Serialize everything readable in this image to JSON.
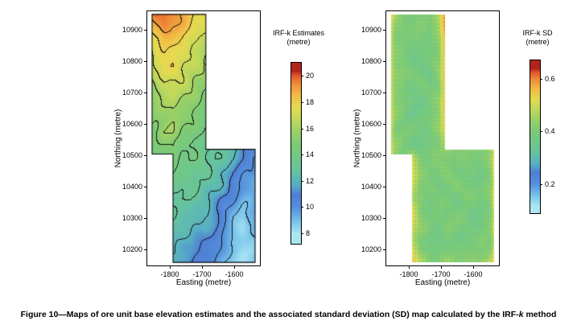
{
  "figure": {
    "caption_parts": [
      {
        "text": "Figure 10—Maps of ore unit base elevation estimates and the associated standard deviation (SD) map calculated by the IRF-"
      },
      {
        "text": "k"
      },
      {
        "text": " method"
      }
    ]
  },
  "chart_data": {
    "type": "heatmap",
    "description": "Two contour/heatmap maps of an irregular Z-shaped ore domain: kriged base elevation estimates (left) and standard deviation (right).",
    "region_polygon": [
      [
        -1855,
        10950
      ],
      [
        -1688,
        10950
      ],
      [
        -1688,
        10520
      ],
      [
        -1535,
        10520
      ],
      [
        -1535,
        10160
      ],
      [
        -1790,
        10160
      ],
      [
        -1790,
        10505
      ],
      [
        -1855,
        10505
      ]
    ],
    "colormap": [
      {
        "t": 0.0,
        "c": "#aae6f2"
      },
      {
        "t": 0.08,
        "c": "#74c0ea"
      },
      {
        "t": 0.16,
        "c": "#5490dc"
      },
      {
        "t": 0.24,
        "c": "#4f7ed4"
      },
      {
        "t": 0.3,
        "c": "#57aec6"
      },
      {
        "t": 0.38,
        "c": "#64c2a2"
      },
      {
        "t": 0.46,
        "c": "#70c888"
      },
      {
        "t": 0.54,
        "c": "#7cca76"
      },
      {
        "t": 0.62,
        "c": "#96d068"
      },
      {
        "t": 0.7,
        "c": "#c0d85c"
      },
      {
        "t": 0.78,
        "c": "#e6da50"
      },
      {
        "t": 0.85,
        "c": "#f2bc46"
      },
      {
        "t": 0.92,
        "c": "#f08c38"
      },
      {
        "t": 0.97,
        "c": "#e25a2c"
      },
      {
        "t": 1.0,
        "c": "#b3241a"
      }
    ],
    "charts": [
      {
        "id": "irfk-estimates-map",
        "type": "heatmap",
        "colorbar_title": "IRF-k Estimates",
        "colorbar_units": "(metre)",
        "xlabel": "Easting (metre)",
        "ylabel": "Northing (metre)",
        "x_range": [
          -1870,
          -1520
        ],
        "y_range": [
          10150,
          10960
        ],
        "x_ticks": [
          -1800,
          -1700,
          -1600
        ],
        "y_ticks": [
          10900,
          10800,
          10700,
          10600,
          10500,
          10400,
          10300,
          10200
        ],
        "colorbar_ticks": [
          20,
          18,
          16,
          14,
          12,
          10,
          8
        ],
        "colorbar_range": [
          7.2,
          21
        ],
        "color_anchor": [
          8,
          20.4
        ],
        "contours": true,
        "contour_interval": 1,
        "outline": true,
        "speckle": false,
        "noise_amp": 0.35,
        "grid": [
          [
            19,
            20,
            20,
            19.5,
            19,
            18.5,
            18,
            17.5,
            17,
            16,
            15,
            14,
            13,
            12
          ],
          [
            18,
            19,
            19.5,
            19,
            18.5,
            18,
            17.5,
            17,
            16,
            15,
            14,
            13,
            12.5,
            12
          ],
          [
            17.5,
            18,
            18.5,
            18,
            18,
            17.5,
            17,
            16.5,
            16,
            15,
            14,
            13,
            12,
            11
          ],
          [
            17,
            17.5,
            18,
            18,
            17.5,
            17,
            17,
            16,
            15,
            14.5,
            14,
            13,
            12,
            11
          ],
          [
            16.5,
            17,
            17.5,
            18,
            17.5,
            17,
            16.5,
            16,
            15,
            14,
            13,
            12.5,
            12,
            11
          ],
          [
            16,
            16.5,
            17,
            17,
            17,
            16.5,
            16,
            15.5,
            15,
            14,
            13,
            12,
            11.5,
            11
          ],
          [
            15.5,
            16,
            16.5,
            17,
            16.5,
            16,
            15.5,
            15,
            14.5,
            14,
            13,
            12,
            11,
            10.5
          ],
          [
            15,
            15.5,
            16,
            16.5,
            16,
            15.5,
            15,
            14.5,
            14,
            13.5,
            13,
            12,
            11,
            10
          ],
          [
            15,
            15,
            15.5,
            16,
            15.5,
            15,
            14.5,
            14,
            14,
            13,
            12.5,
            12,
            11,
            10
          ],
          [
            14.5,
            15,
            16,
            16,
            15,
            14.5,
            14,
            14,
            13.5,
            13,
            12,
            11.5,
            11,
            10
          ],
          [
            14,
            14.5,
            15,
            15.5,
            14.5,
            14,
            14,
            13.5,
            13,
            12.5,
            12,
            11,
            10.5,
            10
          ],
          [
            14,
            14,
            14.5,
            14.5,
            14,
            14,
            13.5,
            13,
            13,
            12.5,
            12,
            11,
            10,
            9.5
          ],
          [
            13.5,
            14,
            14,
            14,
            13.5,
            13.5,
            13,
            13,
            12.5,
            12,
            11,
            10.5,
            10,
            9
          ],
          [
            13,
            13.5,
            14,
            13.5,
            13,
            13,
            13,
            12.5,
            12,
            11.5,
            10.5,
            10,
            9.5,
            9
          ],
          [
            13,
            13,
            13.5,
            13,
            13,
            13,
            12.5,
            12,
            11.5,
            10.5,
            10,
            9.5,
            9,
            9.5
          ],
          [
            12.5,
            13,
            13,
            13,
            12.5,
            12.5,
            12,
            12,
            11,
            10,
            9.5,
            9,
            9.5,
            10
          ],
          [
            12,
            12.5,
            13,
            12.5,
            12,
            12,
            12,
            11.5,
            11,
            10,
            9,
            8.5,
            9,
            10
          ],
          [
            12,
            12,
            12.5,
            12,
            12,
            12,
            11.5,
            11,
            10.5,
            10,
            9,
            8.5,
            9,
            9.5
          ],
          [
            12,
            12,
            12,
            12,
            11.5,
            11.5,
            11,
            10.5,
            10,
            9.5,
            9,
            8.5,
            8.5,
            9
          ],
          [
            11.5,
            12,
            12,
            11.5,
            11,
            11,
            10.5,
            10,
            9.5,
            9,
            8.5,
            8.5,
            8.5,
            9
          ]
        ]
      },
      {
        "id": "irfk-sd-map",
        "type": "heatmap",
        "colorbar_title": "IRF-k SD",
        "colorbar_units": "(metre)",
        "xlabel": "Easting (metre)",
        "ylabel": "Northing (metre)",
        "x_range": [
          -1870,
          -1520
        ],
        "y_range": [
          10150,
          10960
        ],
        "x_ticks": [
          -1800,
          -1700,
          -1600
        ],
        "y_ticks": [
          10900,
          10800,
          10700,
          10600,
          10500,
          10400,
          10300,
          10200
        ],
        "colorbar_ticks": [
          0.6,
          0.4,
          0.2
        ],
        "colorbar_range": [
          0.09,
          0.67
        ],
        "color_anchor": [
          0.12,
          0.64
        ],
        "contours": false,
        "contour_interval": 1,
        "outline": false,
        "speckle": true,
        "noise_amp": 0.02,
        "grid": [
          [
            0.62,
            0.48,
            0.42,
            0.4,
            0.4,
            0.42,
            0.5,
            0.62,
            0.45,
            0.42,
            0.42,
            0.42,
            0.45,
            0.5
          ],
          [
            0.62,
            0.44,
            0.4,
            0.4,
            0.4,
            0.4,
            0.46,
            0.62,
            0.42,
            0.4,
            0.4,
            0.4,
            0.42,
            0.48
          ],
          [
            0.6,
            0.42,
            0.4,
            0.38,
            0.4,
            0.4,
            0.44,
            0.6,
            0.42,
            0.4,
            0.4,
            0.4,
            0.42,
            0.48
          ],
          [
            0.6,
            0.44,
            0.4,
            0.4,
            0.38,
            0.4,
            0.44,
            0.62,
            0.42,
            0.4,
            0.4,
            0.4,
            0.42,
            0.48
          ],
          [
            0.58,
            0.42,
            0.4,
            0.38,
            0.4,
            0.4,
            0.42,
            0.6,
            0.42,
            0.4,
            0.4,
            0.4,
            0.42,
            0.48
          ],
          [
            0.6,
            0.44,
            0.4,
            0.4,
            0.4,
            0.38,
            0.44,
            0.58,
            0.42,
            0.4,
            0.4,
            0.4,
            0.42,
            0.48
          ],
          [
            0.62,
            0.44,
            0.4,
            0.38,
            0.4,
            0.4,
            0.42,
            0.6,
            0.42,
            0.4,
            0.4,
            0.4,
            0.42,
            0.48
          ],
          [
            0.6,
            0.42,
            0.4,
            0.4,
            0.38,
            0.4,
            0.44,
            0.62,
            0.42,
            0.4,
            0.4,
            0.4,
            0.42,
            0.48
          ],
          [
            0.58,
            0.44,
            0.4,
            0.38,
            0.4,
            0.4,
            0.42,
            0.58,
            0.42,
            0.4,
            0.4,
            0.4,
            0.42,
            0.48
          ],
          [
            0.6,
            0.42,
            0.4,
            0.4,
            0.4,
            0.38,
            0.42,
            0.56,
            0.42,
            0.4,
            0.4,
            0.4,
            0.42,
            0.5
          ],
          [
            0.58,
            0.44,
            0.4,
            0.4,
            0.38,
            0.4,
            0.42,
            0.5,
            0.42,
            0.4,
            0.4,
            0.4,
            0.44,
            0.55
          ],
          [
            0.55,
            0.45,
            0.42,
            0.5,
            0.42,
            0.4,
            0.4,
            0.42,
            0.4,
            0.4,
            0.4,
            0.4,
            0.44,
            0.6
          ],
          [
            0.5,
            0.45,
            0.42,
            0.52,
            0.42,
            0.4,
            0.4,
            0.4,
            0.4,
            0.4,
            0.4,
            0.4,
            0.42,
            0.62
          ],
          [
            0.5,
            0.44,
            0.42,
            0.5,
            0.4,
            0.4,
            0.38,
            0.4,
            0.4,
            0.38,
            0.4,
            0.4,
            0.42,
            0.6
          ],
          [
            0.5,
            0.44,
            0.42,
            0.48,
            0.42,
            0.38,
            0.4,
            0.4,
            0.38,
            0.4,
            0.4,
            0.4,
            0.42,
            0.62
          ],
          [
            0.5,
            0.44,
            0.42,
            0.52,
            0.4,
            0.4,
            0.4,
            0.38,
            0.4,
            0.4,
            0.38,
            0.4,
            0.42,
            0.6
          ],
          [
            0.5,
            0.44,
            0.42,
            0.5,
            0.42,
            0.4,
            0.38,
            0.4,
            0.4,
            0.4,
            0.4,
            0.4,
            0.42,
            0.62
          ],
          [
            0.5,
            0.44,
            0.42,
            0.48,
            0.4,
            0.4,
            0.4,
            0.4,
            0.38,
            0.4,
            0.4,
            0.42,
            0.42,
            0.6
          ],
          [
            0.5,
            0.44,
            0.42,
            0.52,
            0.42,
            0.4,
            0.4,
            0.4,
            0.4,
            0.4,
            0.42,
            0.42,
            0.44,
            0.62
          ],
          [
            0.5,
            0.45,
            0.44,
            0.56,
            0.46,
            0.42,
            0.42,
            0.44,
            0.42,
            0.44,
            0.46,
            0.48,
            0.5,
            0.62
          ]
        ]
      }
    ]
  }
}
